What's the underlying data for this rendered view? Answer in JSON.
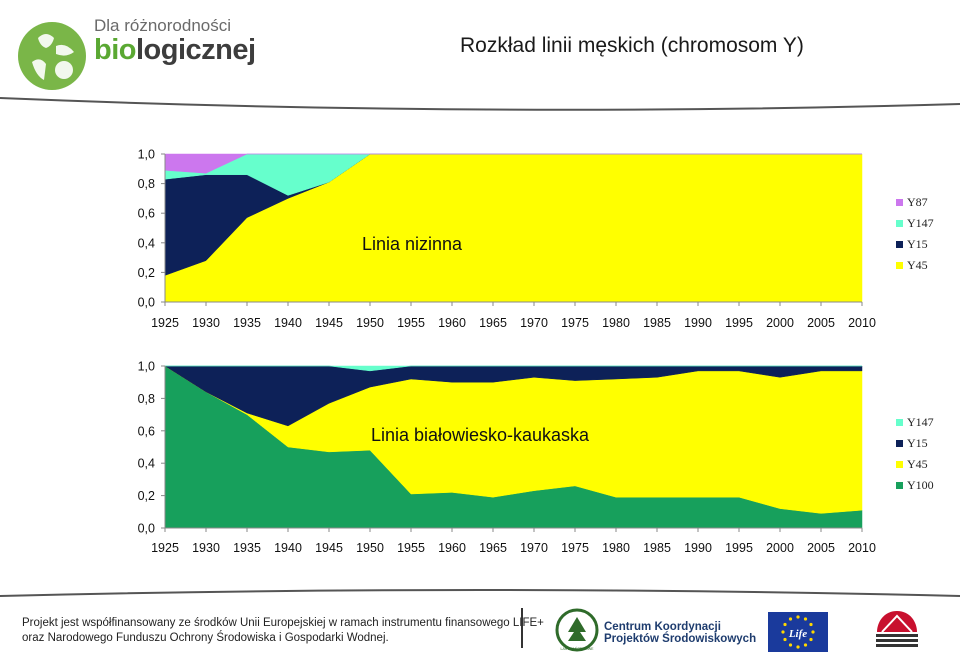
{
  "header": {
    "logo_line1": "Dla różnorodności",
    "logo_line2_a": "bio",
    "logo_line2_b": "logicznej",
    "title": "Rozkład linii męskich (chromosom Y)"
  },
  "chart_data": [
    {
      "type": "area",
      "label": "Linia nizinna",
      "x": [
        1925,
        1930,
        1935,
        1940,
        1945,
        1950,
        1955,
        1960,
        1965,
        1970,
        1975,
        1980,
        1985,
        1990,
        1995,
        2000,
        2005,
        2010
      ],
      "ylim": [
        0,
        1
      ],
      "y_ticks": [
        "0,0",
        "0,2",
        "0,4",
        "0,6",
        "0,8",
        "1,0"
      ],
      "x_ticks": [
        "1925",
        "1930",
        "1935",
        "1940",
        "1945",
        "1950",
        "1955",
        "1960",
        "1965",
        "1970",
        "1975",
        "1980",
        "1985",
        "1990",
        "1995",
        "2000",
        "2005",
        "2010"
      ],
      "series": [
        {
          "name": "Y45",
          "color": "#ffff00",
          "values": [
            0.18,
            0.28,
            0.57,
            0.7,
            0.81,
            1,
            1,
            1,
            1,
            1,
            1,
            1,
            1,
            1,
            1,
            1,
            1,
            1
          ]
        },
        {
          "name": "Y15",
          "color": "#0d2158",
          "values": [
            0.65,
            0.58,
            0.29,
            0.02,
            0,
            0,
            0,
            0,
            0,
            0,
            0,
            0,
            0,
            0,
            0,
            0,
            0,
            0
          ]
        },
        {
          "name": "Y147",
          "color": "#66ffcc",
          "values": [
            0.06,
            0.01,
            0.14,
            0.28,
            0.19,
            0,
            0,
            0,
            0,
            0,
            0,
            0,
            0,
            0,
            0,
            0,
            0,
            0
          ]
        },
        {
          "name": "Y87",
          "color": "#cc77ee",
          "values": [
            0.11,
            0.13,
            0,
            0,
            0,
            0,
            0,
            0,
            0,
            0,
            0,
            0,
            0,
            0,
            0,
            0,
            0,
            0
          ]
        }
      ],
      "legend_order": [
        "Y87",
        "Y147",
        "Y15",
        "Y45"
      ],
      "legend_position": "right"
    },
    {
      "type": "area",
      "label": "Linia białowiesko-kaukaska",
      "x": [
        1925,
        1930,
        1935,
        1940,
        1945,
        1950,
        1955,
        1960,
        1965,
        1970,
        1975,
        1980,
        1985,
        1990,
        1995,
        2000,
        2005,
        2010
      ],
      "ylim": [
        0,
        1
      ],
      "y_ticks": [
        "0,0",
        "0,2",
        "0,4",
        "0,6",
        "0,8",
        "1,0"
      ],
      "x_ticks": [
        "1925",
        "1930",
        "1935",
        "1940",
        "1945",
        "1950",
        "1955",
        "1960",
        "1965",
        "1970",
        "1975",
        "1980",
        "1985",
        "1990",
        "1995",
        "2000",
        "2005",
        "2010"
      ],
      "series": [
        {
          "name": "Y100",
          "color": "#17a05c",
          "values": [
            1,
            0.84,
            0.7,
            0.5,
            0.47,
            0.48,
            0.21,
            0.22,
            0.19,
            0.23,
            0.26,
            0.19,
            0.19,
            0.19,
            0.19,
            0.12,
            0.09,
            0.11
          ]
        },
        {
          "name": "Y45",
          "color": "#ffff00",
          "values": [
            0,
            0,
            0.01,
            0.13,
            0.3,
            0.39,
            0.71,
            0.68,
            0.71,
            0.7,
            0.65,
            0.73,
            0.74,
            0.78,
            0.78,
            0.81,
            0.88,
            0.86
          ]
        },
        {
          "name": "Y15",
          "color": "#0d2158",
          "values": [
            0,
            0.16,
            0.29,
            0.37,
            0.23,
            0.1,
            0.08,
            0.1,
            0.1,
            0.07,
            0.09,
            0.08,
            0.07,
            0.03,
            0.03,
            0.07,
            0.03,
            0.03
          ]
        },
        {
          "name": "Y147",
          "color": "#66ffcc",
          "values": [
            0,
            0,
            0,
            0,
            0,
            0.03,
            0,
            0,
            0,
            0,
            0,
            0,
            0,
            0,
            0,
            0,
            0,
            0
          ]
        }
      ],
      "legend_order": [
        "Y147",
        "Y15",
        "Y45",
        "Y100"
      ],
      "legend_position": "right"
    }
  ],
  "footer": {
    "line1": "Projekt jest współfinansowany ze środków Unii Europejskiej w ramach instrumentu finansowego LIFE+",
    "line2": "oraz Narodowego Funduszu Ochrony Środowiska i Gospodarki Wodnej.",
    "ckps_line1": "Centrum Koordynacji",
    "ckps_line2": "Projektów Środowiskowych",
    "badge_text": "LASY PAŃSTWOWE",
    "eu_life_text": "Life"
  }
}
